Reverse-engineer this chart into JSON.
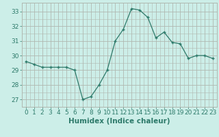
{
  "x": [
    0,
    1,
    2,
    3,
    4,
    5,
    6,
    7,
    8,
    9,
    10,
    11,
    12,
    13,
    14,
    15,
    16,
    17,
    18,
    19,
    20,
    21,
    22,
    23
  ],
  "y": [
    29.6,
    29.4,
    29.2,
    29.2,
    29.2,
    29.2,
    29.0,
    27.0,
    27.2,
    28.0,
    29.0,
    31.0,
    31.8,
    33.2,
    33.1,
    32.6,
    31.2,
    31.6,
    30.9,
    30.8,
    29.8,
    30.0,
    30.0,
    29.8
  ],
  "line_color": "#2d7a6a",
  "marker": "+",
  "marker_size": 3.5,
  "bg_color": "#cceee8",
  "grid_color": "#b0b8b0",
  "xlabel": "Humidex (Indice chaleur)",
  "ylim": [
    26.5,
    33.6
  ],
  "xlim": [
    -0.5,
    23.5
  ],
  "yticks": [
    27,
    28,
    29,
    30,
    31,
    32,
    33
  ],
  "xticks": [
    0,
    1,
    2,
    3,
    4,
    5,
    6,
    7,
    8,
    9,
    10,
    11,
    12,
    13,
    14,
    15,
    16,
    17,
    18,
    19,
    20,
    21,
    22,
    23
  ],
  "tick_label_fontsize": 6.5,
  "xlabel_fontsize": 7.5,
  "line_width": 0.9
}
